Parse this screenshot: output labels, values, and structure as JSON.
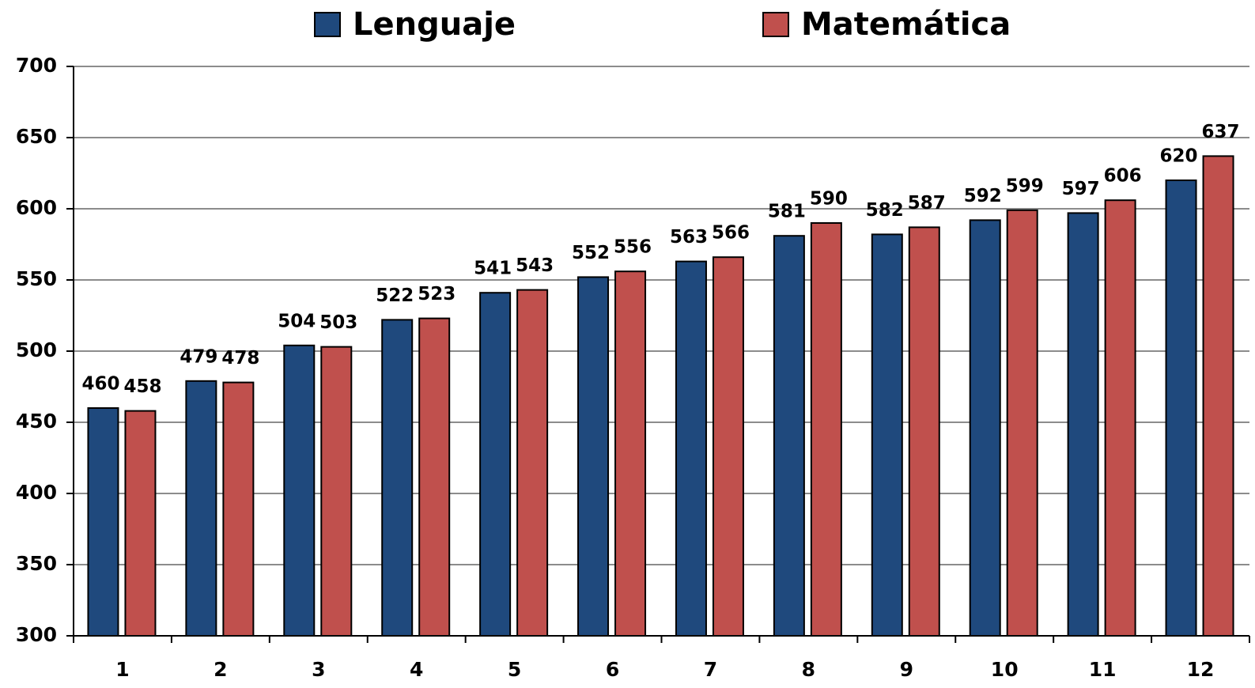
{
  "chart_data": {
    "type": "bar",
    "categories": [
      "1",
      "2",
      "3",
      "4",
      "5",
      "6",
      "7",
      "8",
      "9",
      "10",
      "11",
      "12"
    ],
    "series": [
      {
        "name": "Lenguaje",
        "color": "#1f497d",
        "values": [
          460,
          479,
          504,
          522,
          541,
          552,
          563,
          581,
          582,
          592,
          597,
          620
        ]
      },
      {
        "name": "Matemática",
        "color": "#c0504d",
        "values": [
          458,
          478,
          503,
          523,
          543,
          556,
          566,
          590,
          587,
          599,
          606,
          637
        ]
      }
    ],
    "ylim": [
      300,
      700
    ],
    "yticks": [
      300,
      350,
      400,
      450,
      500,
      550,
      600,
      650,
      700
    ],
    "grid": true
  }
}
